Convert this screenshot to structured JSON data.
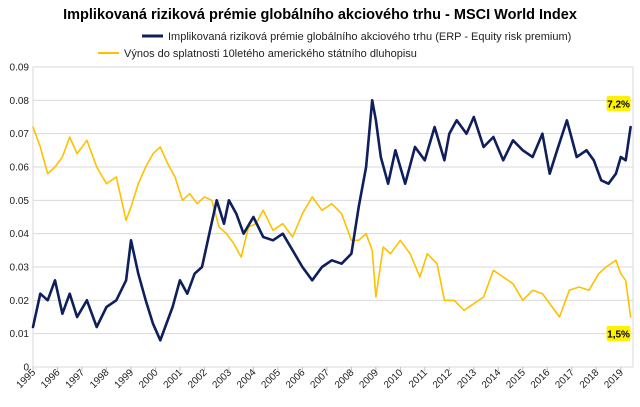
{
  "chart_data": {
    "type": "line",
    "title": "Implikovaná riziková prémie globálního akciového trhu - MSCI World Index",
    "xlabel": "",
    "ylabel": "",
    "xlim": [
      1995,
      2019.5
    ],
    "ylim": [
      0,
      0.09
    ],
    "y_ticks": [
      "0",
      "0.01",
      "0.02",
      "0.03",
      "0.04",
      "0.05",
      "0.06",
      "0.07",
      "0.08",
      "0.09"
    ],
    "x_ticks": [
      "1995",
      "1996",
      "1997",
      "1998",
      "1999",
      "2000",
      "2001",
      "2002",
      "2003",
      "2004",
      "2005",
      "2006",
      "2007",
      "2008",
      "2009",
      "2010",
      "2011",
      "2012",
      "2013",
      "2014",
      "2015",
      "2016",
      "2017",
      "2018",
      "2019"
    ],
    "legend_position": "top-left",
    "series": [
      {
        "name": "Implikovaná riziková prémie globálního akciového trhu (ERP - Equity risk premium)",
        "color": "#0f1f5c",
        "x": [
          1995.0,
          1995.3,
          1995.6,
          1995.9,
          1996.2,
          1996.5,
          1996.8,
          1997.2,
          1997.6,
          1998.0,
          1998.4,
          1998.8,
          1999.0,
          1999.3,
          1999.6,
          1999.9,
          2000.2,
          2000.4,
          2000.7,
          2001.0,
          2001.3,
          2001.6,
          2001.9,
          2002.2,
          2002.5,
          2002.8,
          2003.0,
          2003.3,
          2003.6,
          2004.0,
          2004.4,
          2004.8,
          2005.2,
          2005.6,
          2006.0,
          2006.4,
          2006.8,
          2007.2,
          2007.6,
          2008.0,
          2008.3,
          2008.6,
          2008.85,
          2009.0,
          2009.2,
          2009.5,
          2009.8,
          2010.2,
          2010.6,
          2011.0,
          2011.4,
          2011.8,
          2012.0,
          2012.3,
          2012.7,
          2013.0,
          2013.4,
          2013.8,
          2014.2,
          2014.6,
          2015.0,
          2015.4,
          2015.8,
          2016.1,
          2016.4,
          2016.8,
          2017.2,
          2017.6,
          2017.9,
          2018.2,
          2018.5,
          2018.8,
          2019.0,
          2019.2,
          2019.4
        ],
        "values": [
          0.012,
          0.022,
          0.02,
          0.026,
          0.016,
          0.022,
          0.015,
          0.02,
          0.012,
          0.018,
          0.02,
          0.026,
          0.038,
          0.028,
          0.02,
          0.013,
          0.008,
          0.012,
          0.018,
          0.026,
          0.022,
          0.028,
          0.03,
          0.04,
          0.05,
          0.043,
          0.05,
          0.046,
          0.04,
          0.045,
          0.039,
          0.038,
          0.04,
          0.035,
          0.03,
          0.026,
          0.03,
          0.032,
          0.031,
          0.034,
          0.048,
          0.06,
          0.08,
          0.074,
          0.063,
          0.055,
          0.065,
          0.055,
          0.066,
          0.062,
          0.072,
          0.062,
          0.07,
          0.074,
          0.07,
          0.075,
          0.066,
          0.069,
          0.062,
          0.068,
          0.065,
          0.063,
          0.07,
          0.058,
          0.065,
          0.074,
          0.063,
          0.065,
          0.062,
          0.056,
          0.055,
          0.058,
          0.063,
          0.062,
          0.072
        ]
      },
      {
        "name": "Výnos do splatnosti 10letého amerického státního dluhopisu",
        "color": "#ffc000",
        "x": [
          1995.0,
          1995.3,
          1995.6,
          1995.9,
          1996.2,
          1996.5,
          1996.8,
          1997.2,
          1997.6,
          1998.0,
          1998.4,
          1998.8,
          1999.0,
          1999.3,
          1999.6,
          1999.9,
          2000.2,
          2000.5,
          2000.8,
          2001.1,
          2001.4,
          2001.7,
          2002.0,
          2002.3,
          2002.6,
          2002.9,
          2003.2,
          2003.5,
          2003.8,
          2004.1,
          2004.4,
          2004.8,
          2005.2,
          2005.6,
          2006.0,
          2006.4,
          2006.8,
          2007.2,
          2007.6,
          2008.0,
          2008.3,
          2008.6,
          2008.85,
          2009.0,
          2009.3,
          2009.6,
          2010.0,
          2010.4,
          2010.8,
          2011.1,
          2011.5,
          2011.8,
          2012.2,
          2012.6,
          2013.0,
          2013.4,
          2013.8,
          2014.2,
          2014.6,
          2015.0,
          2015.4,
          2015.8,
          2016.2,
          2016.5,
          2016.9,
          2017.3,
          2017.7,
          2018.1,
          2018.4,
          2018.8,
          2019.0,
          2019.2,
          2019.4
        ],
        "values": [
          0.072,
          0.066,
          0.058,
          0.06,
          0.063,
          0.069,
          0.064,
          0.068,
          0.06,
          0.055,
          0.057,
          0.044,
          0.048,
          0.055,
          0.06,
          0.064,
          0.066,
          0.061,
          0.057,
          0.05,
          0.052,
          0.049,
          0.051,
          0.05,
          0.042,
          0.04,
          0.037,
          0.033,
          0.042,
          0.043,
          0.047,
          0.041,
          0.043,
          0.039,
          0.046,
          0.051,
          0.047,
          0.049,
          0.046,
          0.038,
          0.038,
          0.04,
          0.035,
          0.021,
          0.036,
          0.034,
          0.038,
          0.034,
          0.027,
          0.034,
          0.031,
          0.02,
          0.02,
          0.017,
          0.019,
          0.021,
          0.029,
          0.027,
          0.025,
          0.02,
          0.023,
          0.022,
          0.018,
          0.015,
          0.023,
          0.024,
          0.023,
          0.028,
          0.03,
          0.032,
          0.028,
          0.026,
          0.015
        ]
      }
    ],
    "annotations": [
      {
        "label": "7,2%",
        "x": 2019.4,
        "y": 0.072,
        "series": 0
      },
      {
        "label": "1,5%",
        "x": 2019.4,
        "y": 0.015,
        "series": 1
      }
    ]
  }
}
